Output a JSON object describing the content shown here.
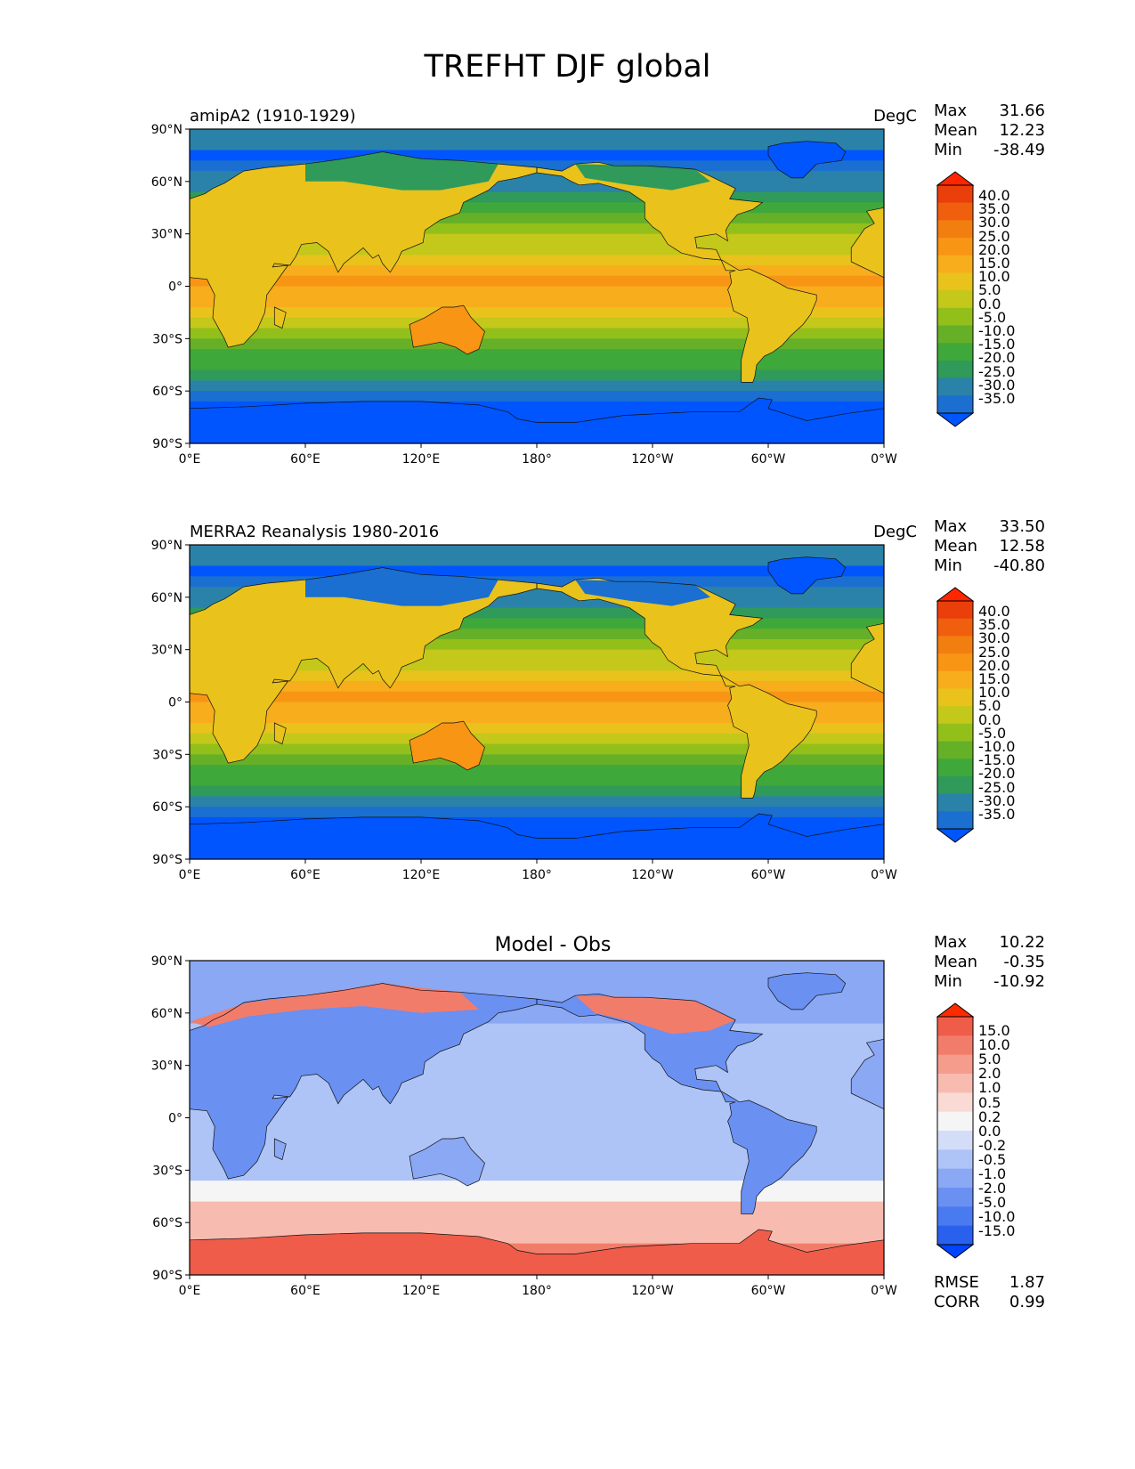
{
  "figure_title": "TREFHT DJF global",
  "panels": [
    {
      "left_title": "amipA2 (1910-1929)",
      "units": "DegC",
      "center_title": "",
      "stats": {
        "max": "31.66",
        "mean": "12.23",
        "min": "-38.49"
      },
      "colorbar_ticks": [
        "40.0",
        "35.0",
        "30.0",
        "25.0",
        "20.0",
        "15.0",
        "10.0",
        "5.0",
        "0.0",
        "-5.0",
        "-10.0",
        "-15.0",
        "-20.0",
        "-25.0",
        "-30.0",
        "-35.0"
      ]
    },
    {
      "left_title": "MERRA2 Reanalysis 1980-2016",
      "units": "DegC",
      "center_title": "",
      "stats": {
        "max": "33.50",
        "mean": "12.58",
        "min": "-40.80"
      },
      "colorbar_ticks": [
        "40.0",
        "35.0",
        "30.0",
        "25.0",
        "20.0",
        "15.0",
        "10.0",
        "5.0",
        "0.0",
        "-5.0",
        "-10.0",
        "-15.0",
        "-20.0",
        "-25.0",
        "-30.0",
        "-35.0"
      ]
    },
    {
      "left_title": "",
      "units": "",
      "center_title": "Model - Obs",
      "stats": {
        "max": "10.22",
        "mean": "-0.35",
        "min": "-10.92"
      },
      "colorbar_ticks": [
        "15.0",
        "10.0",
        "5.0",
        "2.0",
        "1.0",
        "0.5",
        "0.2",
        "0.0",
        "-0.2",
        "-0.5",
        "-1.0",
        "-2.0",
        "-5.0",
        "-10.0",
        "-15.0"
      ],
      "rmse": "1.87",
      "corr": "0.99"
    }
  ],
  "stat_labels": {
    "max": "Max",
    "mean": "Mean",
    "min": "Min",
    "rmse": "RMSE",
    "corr": "CORR"
  },
  "lat_ticks": [
    "90°N",
    "60°N",
    "30°N",
    "0°",
    "30°S",
    "60°S",
    "90°S"
  ],
  "lon_ticks": [
    "0°E",
    "60°E",
    "120°E",
    "180°",
    "120°W",
    "60°W",
    "0°W"
  ],
  "colors": {
    "temperature_scale": [
      "#0055ff",
      "#1a6fd0",
      "#2a82a8",
      "#2f9a5a",
      "#3fa83a",
      "#66b028",
      "#93bf1a",
      "#c3c81a",
      "#e9c21c",
      "#f7ad1c",
      "#f89514",
      "#f27e10",
      "#f05f0e",
      "#ea3e0b",
      "#ff2600"
    ],
    "difference_scale": [
      "#0044ff",
      "#2a60ee",
      "#4a7af0",
      "#6a90f2",
      "#8aa8f4",
      "#aec4f6",
      "#d3ddf8",
      "#f5f5f5",
      "#fadad4",
      "#f7bbb0",
      "#f59c8c",
      "#f27c6a",
      "#ef5c4a",
      "#ff2b00"
    ]
  }
}
